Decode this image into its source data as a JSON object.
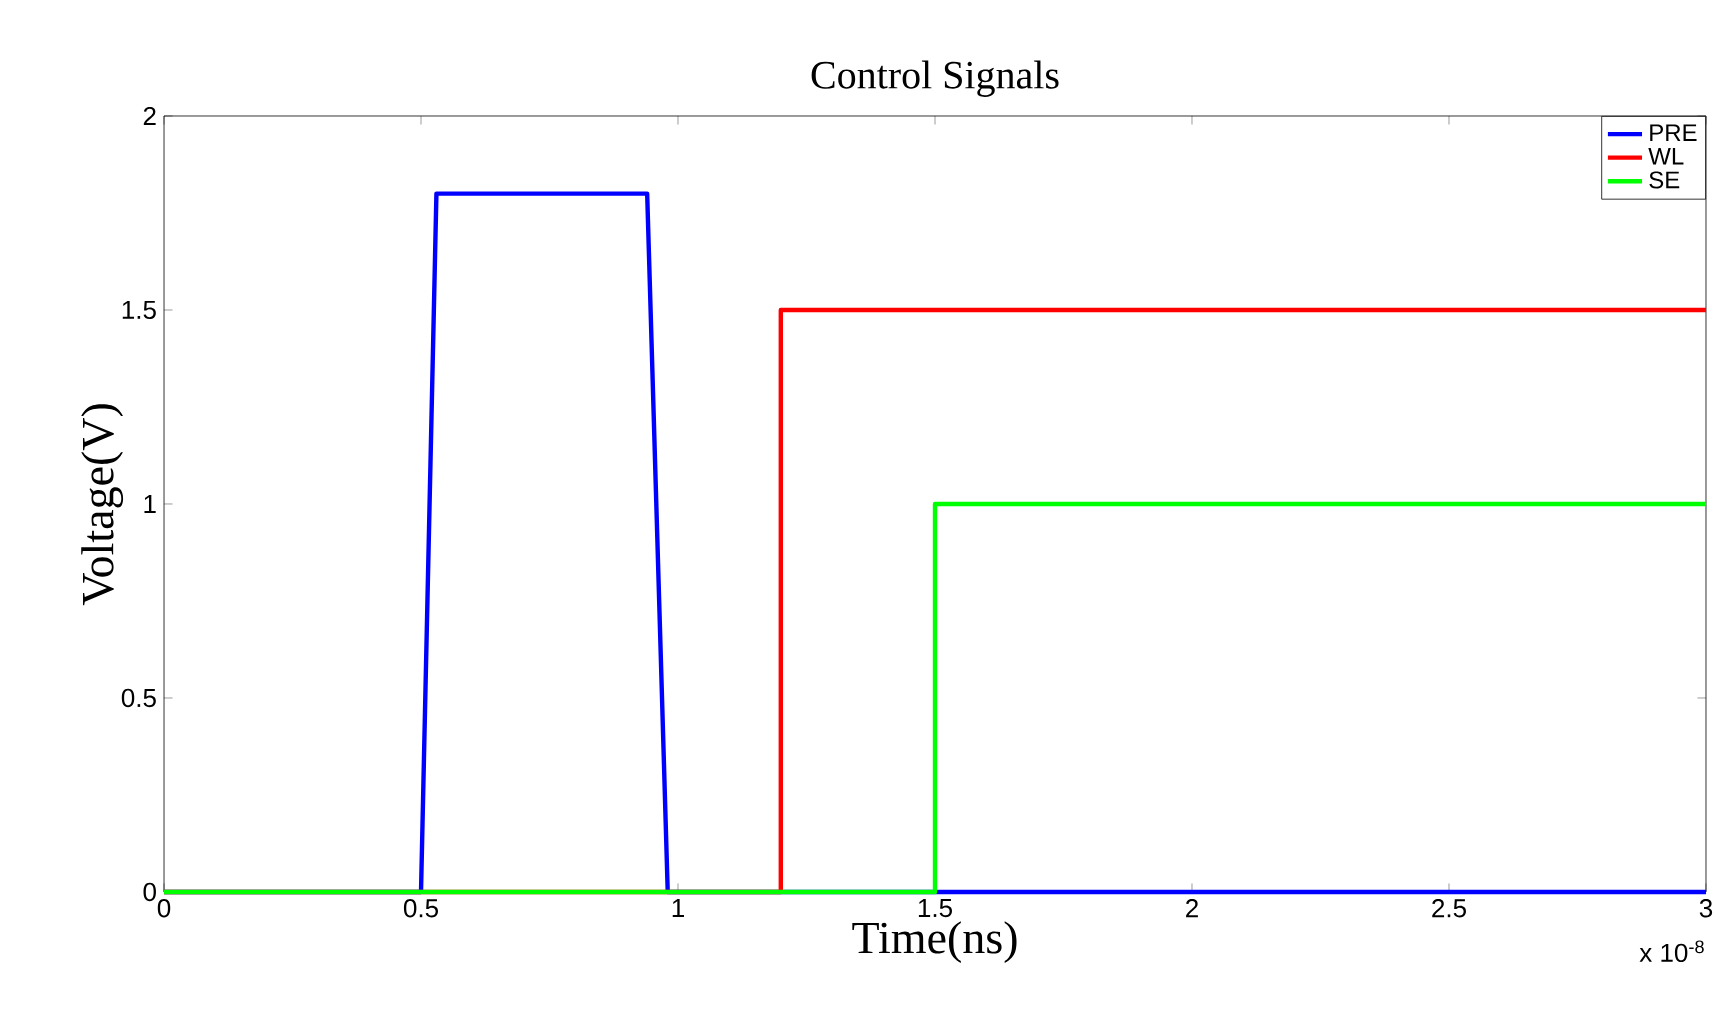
{
  "chart_data": {
    "type": "line",
    "title": "Control Signals",
    "xlabel": "Time(ns)",
    "ylabel": "Voltage(V)",
    "annotations": [
      "x 10$^{-8}$"
    ],
    "series": [
      {
        "name": "PRE",
        "color": "#0000ff",
        "x": [
          0,
          0.5,
          0.53,
          0.94,
          0.98,
          3
        ],
        "values": [
          0,
          0,
          1.8,
          1.8,
          0,
          0
        ]
      },
      {
        "name": "WL",
        "color": "#ff0000",
        "x": [
          0,
          1.2,
          1.2,
          3
        ],
        "values": [
          0,
          0,
          1.5,
          1.5
        ]
      },
      {
        "name": "SE",
        "color": "#00ff00",
        "x": [
          0,
          1.5,
          1.5,
          3
        ],
        "values": [
          0,
          0,
          1,
          1
        ]
      }
    ],
    "xlim": [
      0,
      3
    ],
    "ylim": [
      0,
      2
    ],
    "xticks": [
      0,
      0.5,
      1,
      1.5,
      2,
      2.5,
      3
    ],
    "yticks": [
      0,
      0.5,
      1,
      1.5,
      2
    ],
    "legend": "top right",
    "line_style": "solid"
  }
}
